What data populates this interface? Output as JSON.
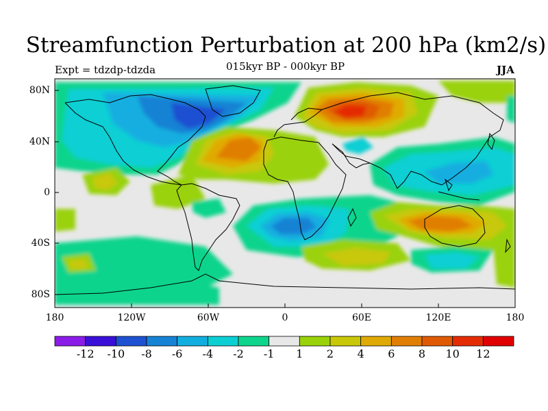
{
  "title": "Streamfunction Perturbation at 200 hPa (km2/s)",
  "subtitle": "015kyr BP - 000kyr BP",
  "experiment": "Expt = tdzdp-tdzda",
  "season": "JJA",
  "lat_labels": [
    "80N",
    "40N",
    "0",
    "40S",
    "80S"
  ],
  "lon_labels": [
    "180",
    "120W",
    "60W",
    "0",
    "60E",
    "120E",
    "180"
  ],
  "colorbar": {
    "colors": [
      "#8b1ce8",
      "#3a10d8",
      "#1e50d2",
      "#1682d4",
      "#12aee0",
      "#0ccfd4",
      "#0ed48c",
      "#e8e8e8",
      "#9ad20a",
      "#c8c808",
      "#e0aa06",
      "#e07e04",
      "#e05a04",
      "#e42c04",
      "#e00000"
    ],
    "labels": [
      "-12",
      "-10",
      "-8",
      "-6",
      "-4",
      "-2",
      "-1",
      "1",
      "2",
      "4",
      "6",
      "8",
      "10",
      "12"
    ]
  }
}
